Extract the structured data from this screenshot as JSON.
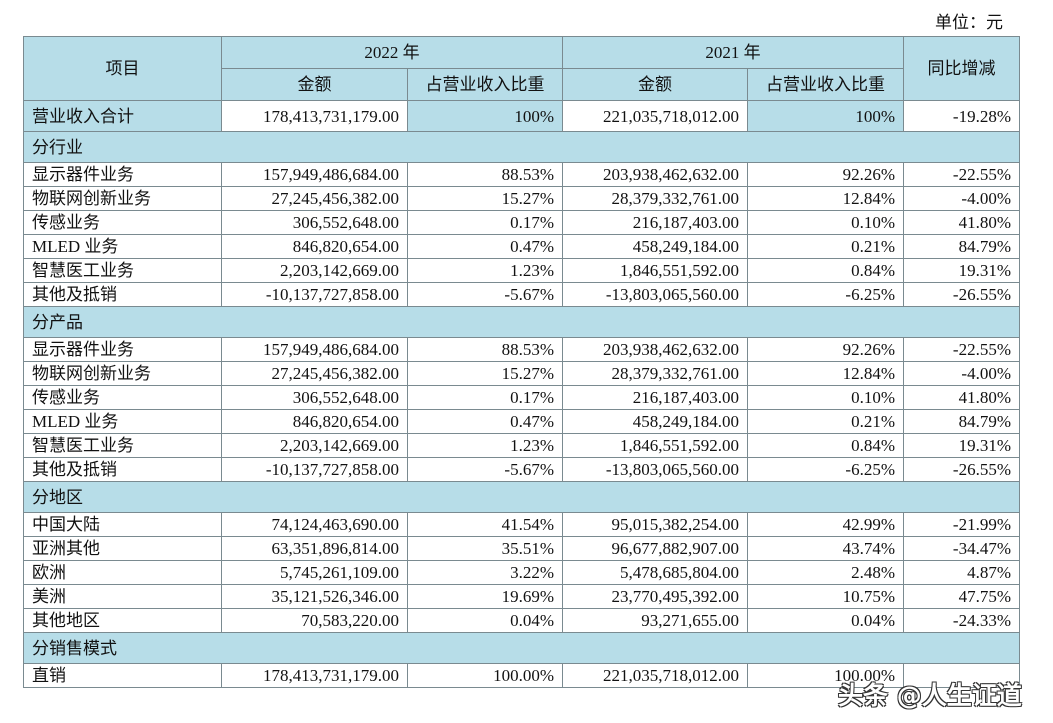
{
  "unit": "单位：元",
  "header": {
    "item": "项目",
    "y2022": "2022 年",
    "y2021": "2021 年",
    "amount": "金额",
    "ratio": "占营业收入比重",
    "yoy": "同比增减"
  },
  "total": {
    "label": "营业收入合计",
    "a22": "178,413,731,179.00",
    "r22": "100%",
    "a21": "221,035,718,012.00",
    "r21": "100%",
    "yoy": "-19.28%"
  },
  "sections": [
    {
      "title": "分行业",
      "rows": [
        [
          "显示器件业务",
          "157,949,486,684.00",
          "88.53%",
          "203,938,462,632.00",
          "92.26%",
          "-22.55%"
        ],
        [
          "物联网创新业务",
          "27,245,456,382.00",
          "15.27%",
          "28,379,332,761.00",
          "12.84%",
          "-4.00%"
        ],
        [
          "传感业务",
          "306,552,648.00",
          "0.17%",
          "216,187,403.00",
          "0.10%",
          "41.80%"
        ],
        [
          "MLED 业务",
          "846,820,654.00",
          "0.47%",
          "458,249,184.00",
          "0.21%",
          "84.79%"
        ],
        [
          "智慧医工业务",
          "2,203,142,669.00",
          "1.23%",
          "1,846,551,592.00",
          "0.84%",
          "19.31%"
        ],
        [
          "其他及抵销",
          "-10,137,727,858.00",
          "-5.67%",
          "-13,803,065,560.00",
          "-6.25%",
          "-26.55%"
        ]
      ]
    },
    {
      "title": "分产品",
      "rows": [
        [
          "显示器件业务",
          "157,949,486,684.00",
          "88.53%",
          "203,938,462,632.00",
          "92.26%",
          "-22.55%"
        ],
        [
          "物联网创新业务",
          "27,245,456,382.00",
          "15.27%",
          "28,379,332,761.00",
          "12.84%",
          "-4.00%"
        ],
        [
          "传感业务",
          "306,552,648.00",
          "0.17%",
          "216,187,403.00",
          "0.10%",
          "41.80%"
        ],
        [
          "MLED 业务",
          "846,820,654.00",
          "0.47%",
          "458,249,184.00",
          "0.21%",
          "84.79%"
        ],
        [
          "智慧医工业务",
          "2,203,142,669.00",
          "1.23%",
          "1,846,551,592.00",
          "0.84%",
          "19.31%"
        ],
        [
          "其他及抵销",
          "-10,137,727,858.00",
          "-5.67%",
          "-13,803,065,560.00",
          "-6.25%",
          "-26.55%"
        ]
      ]
    },
    {
      "title": "分地区",
      "rows": [
        [
          "中国大陆",
          "74,124,463,690.00",
          "41.54%",
          "95,015,382,254.00",
          "42.99%",
          "-21.99%"
        ],
        [
          "亚洲其他",
          "63,351,896,814.00",
          "35.51%",
          "96,677,882,907.00",
          "43.74%",
          "-34.47%"
        ],
        [
          "欧洲",
          "5,745,261,109.00",
          "3.22%",
          "5,478,685,804.00",
          "2.48%",
          "4.87%"
        ],
        [
          "美洲",
          "35,121,526,346.00",
          "19.69%",
          "23,770,495,392.00",
          "10.75%",
          "47.75%"
        ],
        [
          "其他地区",
          "70,583,220.00",
          "0.04%",
          "93,271,655.00",
          "0.04%",
          "-24.33%"
        ]
      ]
    },
    {
      "title": "分销售模式",
      "rows": [
        [
          "直销",
          "178,413,731,179.00",
          "100.00%",
          "221,035,718,012.00",
          "100.00%",
          ""
        ]
      ]
    }
  ],
  "watermark": "头条 @人生证道"
}
